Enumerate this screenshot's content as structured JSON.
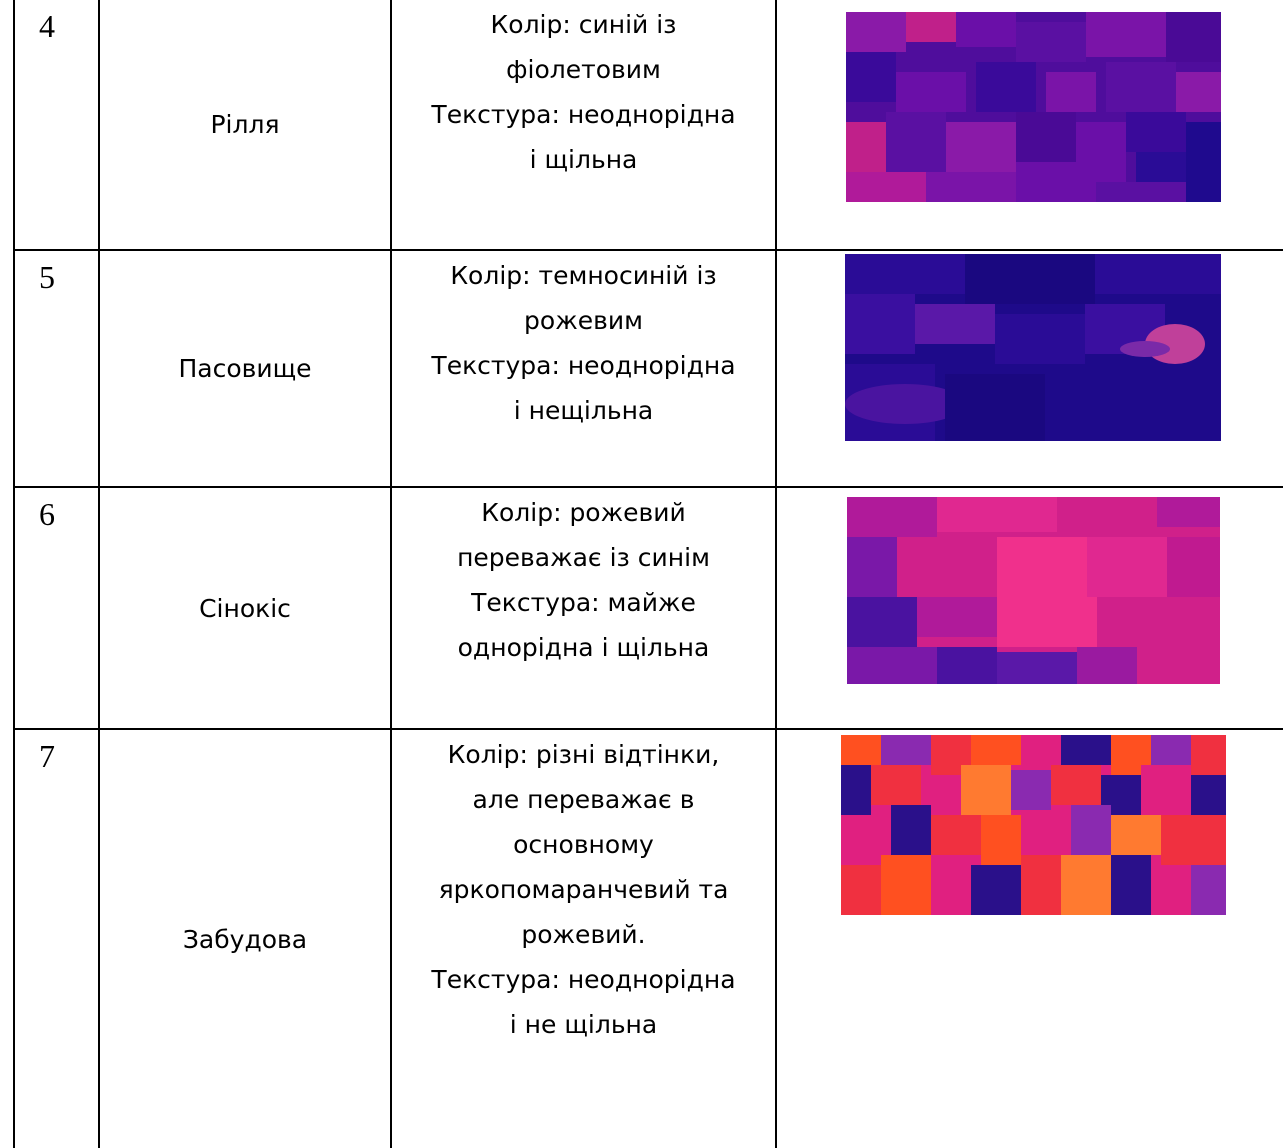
{
  "rows": [
    {
      "number": "4",
      "name": "Рілля",
      "description_lines": [
        "Колір: синій із",
        "фіолетовим",
        "Текстура: неоднорідна",
        "і щільна"
      ],
      "thumbnail": {
        "name": "arable-land-thumbnail",
        "colors": [
          "#4a0a96",
          "#6a0fa8",
          "#8a1aa8",
          "#3a0a9a",
          "#c0208a",
          "#1f0a8e"
        ]
      }
    },
    {
      "number": "5",
      "name": "Пасовище",
      "description_lines": [
        "Колір: темносиній із",
        "рожевим",
        "Текстура: неоднорідна",
        "і нещільна"
      ],
      "thumbnail": {
        "name": "pasture-thumbnail",
        "colors": [
          "#1e0a8a",
          "#2a0c96",
          "#3a0fa0",
          "#5a18a8",
          "#c0409a",
          "#1a0880"
        ]
      }
    },
    {
      "number": "6",
      "name": "Сінокіс",
      "description_lines": [
        "Колір: рожевий",
        "переважає із синім",
        "Текстура: майже",
        "однорідна і щільна"
      ],
      "thumbnail": {
        "name": "hayfield-thumbnail",
        "colors": [
          "#d0208a",
          "#e02890",
          "#b01a9a",
          "#7a18a8",
          "#f0308c",
          "#4a12a0"
        ]
      }
    },
    {
      "number": "7",
      "name": "Забудова",
      "description_lines": [
        "Колір: різні відтінки,",
        "але переважає в",
        "основному",
        "яркопомаранчевий та",
        "рожевий.",
        "Текстура: неоднорідна",
        "і не щільна"
      ],
      "thumbnail": {
        "name": "built-up-thumbnail",
        "colors": [
          "#f03040",
          "#ff5020",
          "#e02080",
          "#2a108a",
          "#8a2ab0",
          "#ff7a30"
        ]
      }
    }
  ]
}
